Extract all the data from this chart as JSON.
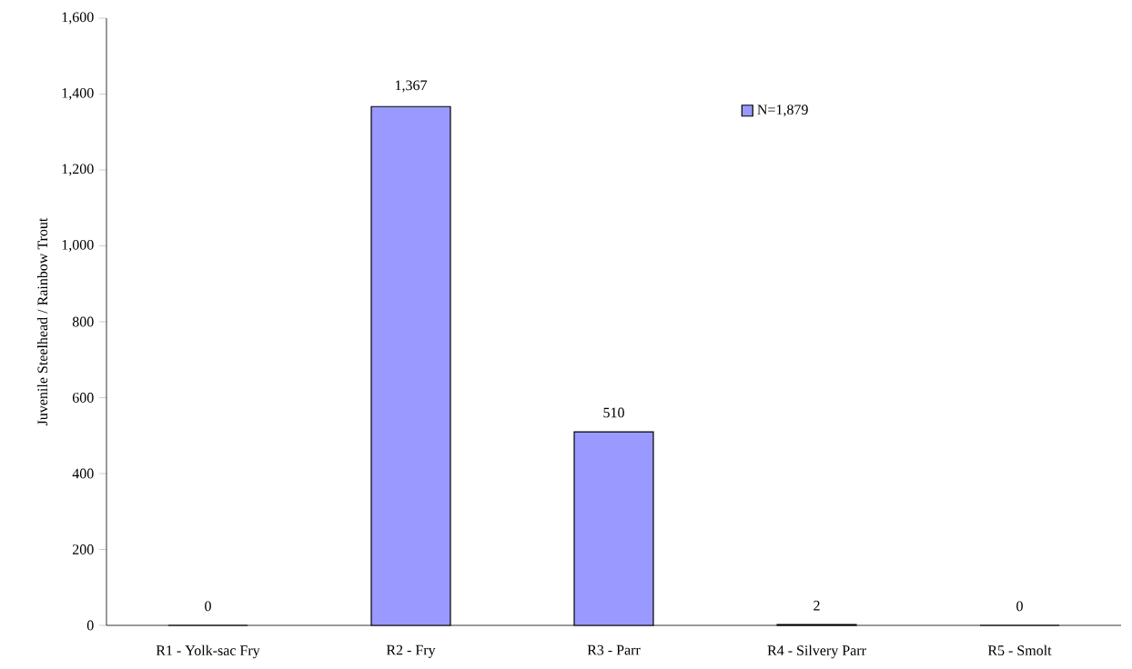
{
  "chart_data": {
    "type": "bar",
    "ylabel": "Juvenile Steelhead / Rainbow Trout",
    "categories": [
      "R1 - Yolk-sac Fry",
      "R2 - Fry",
      "R3 - Parr",
      "R4 - Silvery Parr",
      "R5 - Smolt"
    ],
    "series": [
      {
        "name": "N=1,879",
        "color": "#9999ff",
        "values": [
          0,
          1367,
          510,
          2,
          0
        ],
        "value_labels": [
          "0",
          "1,367",
          "510",
          "2",
          "0"
        ]
      }
    ],
    "ylim": [
      0,
      1600
    ],
    "yticks": [
      0,
      200,
      400,
      600,
      800,
      {
        "value": 1000,
        "label": "1,000"
      },
      {
        "value": 1200,
        "label": "1,200"
      },
      {
        "value": 1400,
        "label": "1,400"
      },
      {
        "value": 1600,
        "label": "1,600"
      }
    ],
    "grid": false,
    "legend": "top right"
  }
}
